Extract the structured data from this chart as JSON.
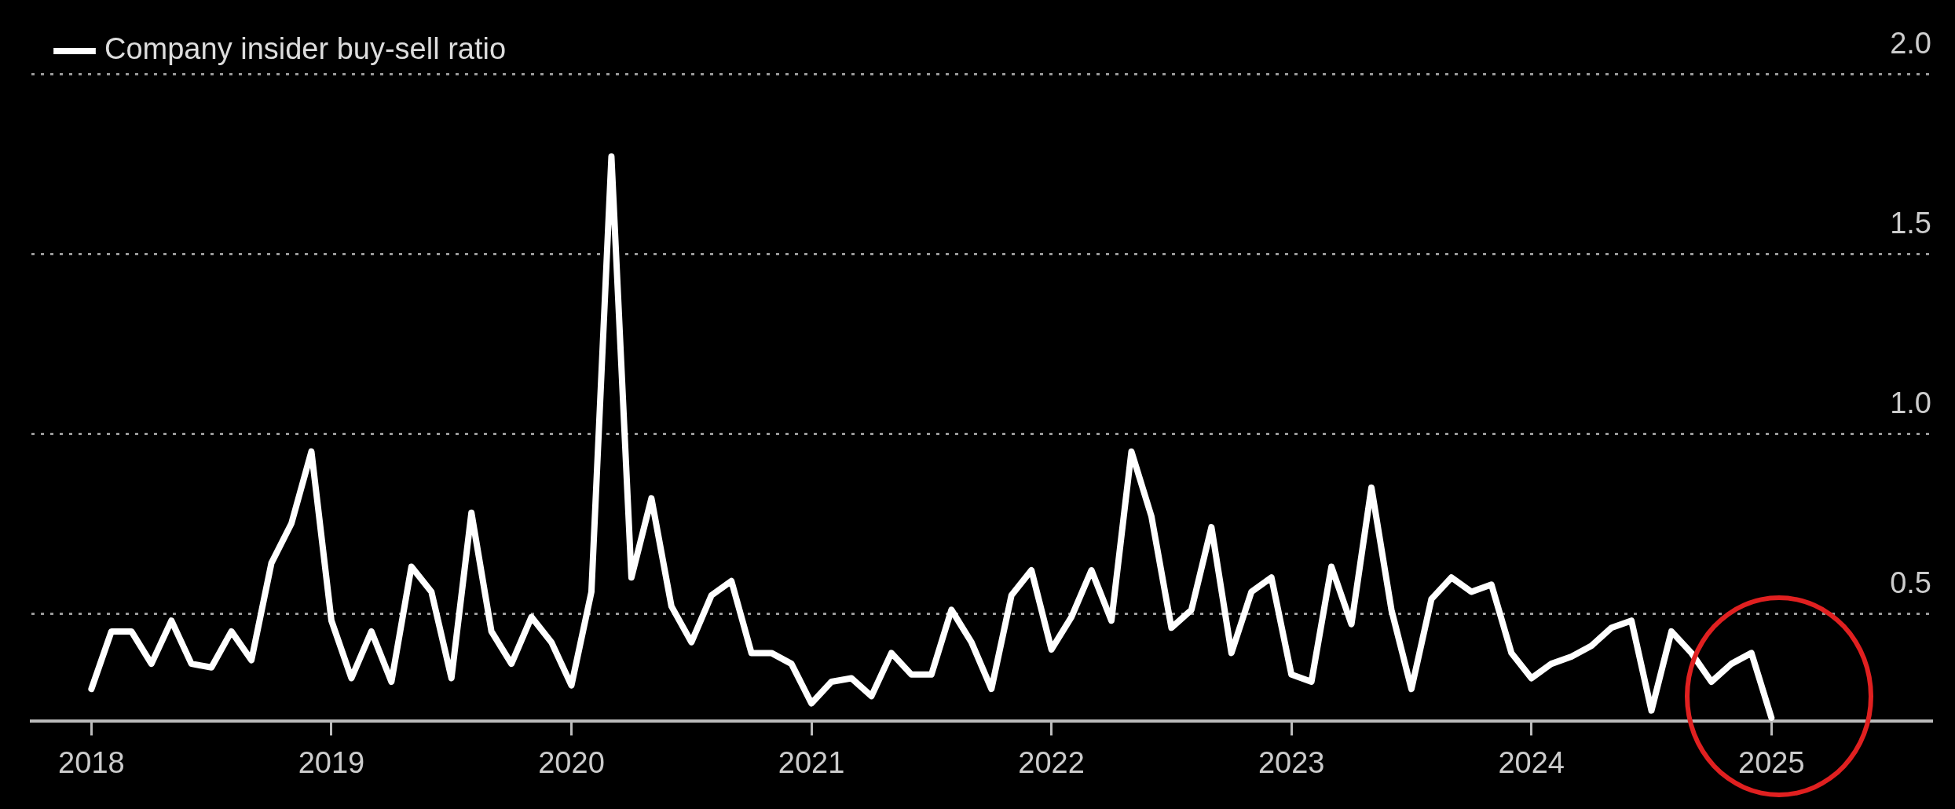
{
  "chart_data": {
    "type": "line",
    "x": [
      "2018-01",
      "2018-02",
      "2018-03",
      "2018-04",
      "2018-05",
      "2018-06",
      "2018-07",
      "2018-08",
      "2018-09",
      "2018-10",
      "2018-11",
      "2018-12",
      "2019-01",
      "2019-02",
      "2019-03",
      "2019-04",
      "2019-05",
      "2019-06",
      "2019-07",
      "2019-08",
      "2019-09",
      "2019-10",
      "2019-11",
      "2019-12",
      "2020-01",
      "2020-02",
      "2020-03",
      "2020-04",
      "2020-05",
      "2020-06",
      "2020-07",
      "2020-08",
      "2020-09",
      "2020-10",
      "2020-11",
      "2020-12",
      "2021-01",
      "2021-02",
      "2021-03",
      "2021-04",
      "2021-05",
      "2021-06",
      "2021-07",
      "2021-08",
      "2021-09",
      "2021-10",
      "2021-11",
      "2021-12",
      "2022-01",
      "2022-02",
      "2022-03",
      "2022-04",
      "2022-05",
      "2022-06",
      "2022-07",
      "2022-08",
      "2022-09",
      "2022-10",
      "2022-11",
      "2022-12",
      "2023-01",
      "2023-02",
      "2023-03",
      "2023-04",
      "2023-05",
      "2023-06",
      "2023-07",
      "2023-08",
      "2023-09",
      "2023-10",
      "2023-11",
      "2023-12",
      "2024-01",
      "2024-02",
      "2024-03",
      "2024-04",
      "2024-05",
      "2024-06",
      "2024-07",
      "2024-08",
      "2024-09",
      "2024-10",
      "2024-11",
      "2024-12",
      "2025-01"
    ],
    "series": [
      {
        "name": "Company insider buy-sell ratio",
        "color": "#ffffff",
        "values": [
          0.29,
          0.45,
          0.45,
          0.36,
          0.48,
          0.36,
          0.35,
          0.45,
          0.37,
          0.64,
          0.75,
          0.95,
          0.48,
          0.32,
          0.45,
          0.31,
          0.63,
          0.56,
          0.32,
          0.78,
          0.45,
          0.36,
          0.49,
          0.42,
          0.3,
          0.56,
          1.77,
          0.6,
          0.82,
          0.52,
          0.42,
          0.55,
          0.59,
          0.39,
          0.39,
          0.36,
          0.25,
          0.31,
          0.32,
          0.27,
          0.39,
          0.33,
          0.33,
          0.51,
          0.42,
          0.29,
          0.55,
          0.62,
          0.4,
          0.49,
          0.62,
          0.48,
          0.95,
          0.77,
          0.46,
          0.51,
          0.74,
          0.39,
          0.56,
          0.6,
          0.33,
          0.31,
          0.63,
          0.47,
          0.85,
          0.51,
          0.29,
          0.54,
          0.6,
          0.56,
          0.58,
          0.39,
          0.32,
          0.36,
          0.38,
          0.41,
          0.46,
          0.48,
          0.23,
          0.45,
          0.39,
          0.31,
          0.36,
          0.39,
          0.21
        ]
      }
    ],
    "xlim": [
      "2017-10",
      "2025-09"
    ],
    "xticks": [
      "2018",
      "2019",
      "2020",
      "2021",
      "2022",
      "2023",
      "2024",
      "2025"
    ],
    "ylim": [
      0.2,
      2.0
    ],
    "yticks": [
      {
        "value": 0.5,
        "label": "0.5"
      },
      {
        "value": 1,
        "label": "1.0"
      },
      {
        "value": 1.5,
        "label": "1.5"
      },
      {
        "value": 2,
        "label": "2.0"
      }
    ],
    "grid": "y",
    "legend": "top left",
    "marker": "none",
    "line_style": "solid"
  }
}
